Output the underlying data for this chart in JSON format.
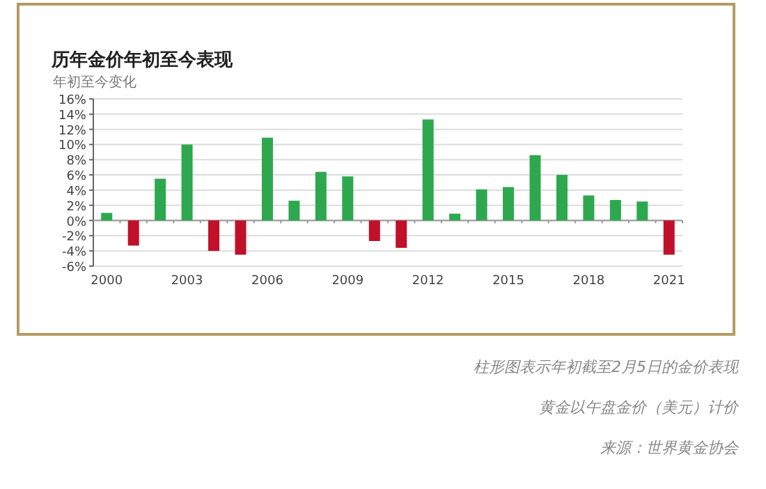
{
  "chart_data": {
    "type": "bar",
    "title": "历年金价年初至今表现",
    "ylabel": "年初至今变化",
    "categories": [
      "2000",
      null,
      null,
      "2003",
      null,
      null,
      "2006",
      null,
      null,
      "2009",
      null,
      null,
      "2012",
      null,
      null,
      "2015",
      null,
      null,
      "2018",
      null,
      null,
      "2021"
    ],
    "values": [
      1.0,
      -3.3,
      5.5,
      10.0,
      -4.0,
      -4.5,
      10.9,
      2.6,
      6.4,
      5.8,
      -2.7,
      -3.6,
      13.3,
      0.9,
      4.1,
      4.4,
      8.6,
      6.0,
      3.3,
      2.7,
      2.5,
      -4.5
    ],
    "colors": [
      "#2ea84f",
      "#c0102a",
      "#2ea84f",
      "#2ea84f",
      "#c0102a",
      "#c0102a",
      "#2ea84f",
      "#2ea84f",
      "#2ea84f",
      "#2ea84f",
      "#c0102a",
      "#c0102a",
      "#2ea84f",
      "#2ea84f",
      "#2ea84f",
      "#2ea84f",
      "#2ea84f",
      "#2ea84f",
      "#2ea84f",
      "#2ea84f",
      "#2ea84f",
      "#c0102a"
    ],
    "ylim": [
      -6,
      16
    ],
    "yticks": [
      {
        "value": -6,
        "label": "-6%"
      },
      {
        "value": -4,
        "label": "-4%"
      },
      {
        "value": -2,
        "label": "-2%"
      },
      {
        "value": 0,
        "label": "0%"
      },
      {
        "value": 2,
        "label": "2%"
      },
      {
        "value": 4,
        "label": "4%"
      },
      {
        "value": 6,
        "label": "6%"
      },
      {
        "value": 8,
        "label": "8%"
      },
      {
        "value": 10,
        "label": "10%"
      },
      {
        "value": 12,
        "label": "12%"
      },
      {
        "value": 14,
        "label": "14%"
      },
      {
        "value": 16,
        "label": "16%"
      }
    ],
    "grid": "y",
    "annotations": [
      "柱形图表示年初截至2月5日的金价表现",
      "黄金以午盘金价（美元）计价",
      "来源：世界黄金协会"
    ]
  }
}
